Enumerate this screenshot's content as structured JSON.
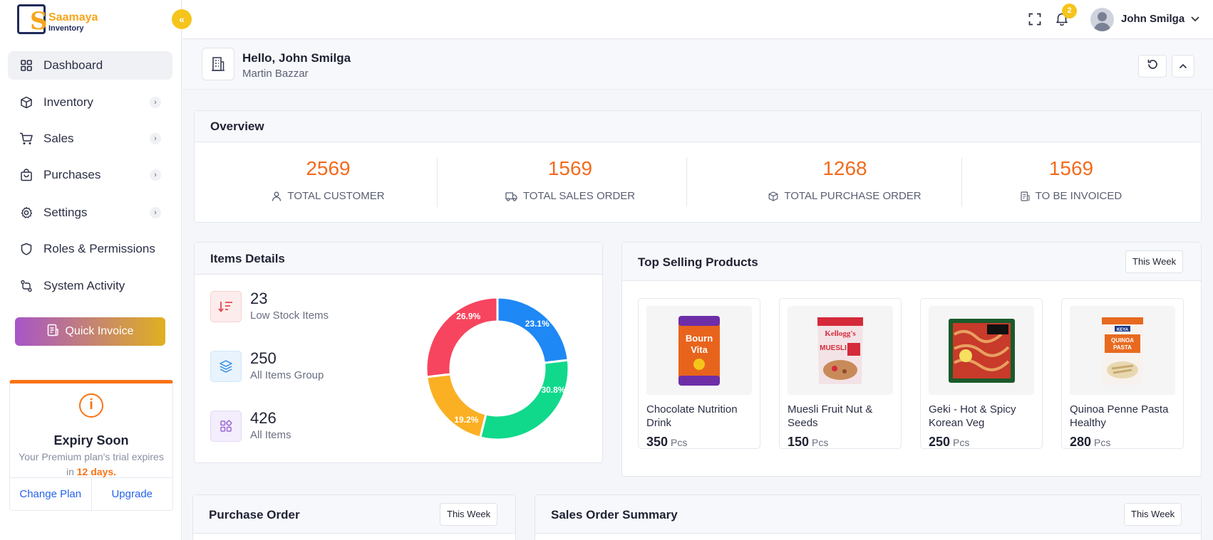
{
  "app": {
    "logo_line1": "Saamaya",
    "logo_line2": "Inventory"
  },
  "sidebar": {
    "items": [
      {
        "label": "Dashboard",
        "icon": "grid-icon",
        "active": true
      },
      {
        "label": "Inventory",
        "icon": "box-icon",
        "has_children": true
      },
      {
        "label": "Sales",
        "icon": "cart-icon",
        "has_children": true
      },
      {
        "label": "Purchases",
        "icon": "bag-icon",
        "has_children": true
      },
      {
        "label": "Settings",
        "icon": "gear-icon",
        "has_children": true
      },
      {
        "label": "Roles & Permissions",
        "icon": "shield-icon"
      },
      {
        "label": "System Activity",
        "icon": "activity-icon"
      }
    ],
    "quick_invoice_label": "Quick Invoice",
    "expiry": {
      "title": "Expiry Soon",
      "message_prefix": "Your Premium plan's trial expires in",
      "days": "12 days.",
      "change_plan": "Change Plan",
      "upgrade": "Upgrade"
    }
  },
  "topbar": {
    "notification_count": "2",
    "user_name": "John Smilga"
  },
  "greeting": {
    "title": "Hello, John Smilga",
    "subtitle": "Martin Bazzar"
  },
  "overview": {
    "title": "Overview",
    "stats": [
      {
        "value": "2569",
        "label": "TOTAL CUSTOMER",
        "icon": "user-icon"
      },
      {
        "value": "1569",
        "label": "TOTAL SALES ORDER",
        "icon": "truck-icon"
      },
      {
        "value": "1268",
        "label": "TOTAL PURCHASE ORDER",
        "icon": "package-icon"
      },
      {
        "value": "1569",
        "label": "TO BE INVOICED",
        "icon": "invoice-icon"
      }
    ]
  },
  "items_details": {
    "title": "Items Details",
    "rows": [
      {
        "value": "23",
        "label": "Low Stock Items",
        "icon": "sort-down-icon"
      },
      {
        "value": "250",
        "label": "All Items Group",
        "icon": "layers-icon"
      },
      {
        "value": "426",
        "label": "All Items",
        "icon": "apps-icon"
      }
    ]
  },
  "chart_data": {
    "type": "pie",
    "categories": [
      "",
      "",
      "",
      ""
    ],
    "values": [
      23.1,
      30.8,
      19.2,
      26.9
    ],
    "labels": [
      "23.1%",
      "30.8%",
      "19.2%",
      "26.9%"
    ],
    "colors": [
      "#1e88f5",
      "#10d98c",
      "#fbb024",
      "#f7455f"
    ],
    "title": ""
  },
  "top_selling": {
    "title": "Top Selling Products",
    "period": "This Week",
    "products": [
      {
        "name": "Chocolate Nutrition Drink",
        "qty": "350",
        "unit": "Pcs",
        "brand": "Bourn Vita",
        "color": "#e8641c"
      },
      {
        "name": "Muesli Fruit Nut & Seeds",
        "qty": "150",
        "unit": "Pcs",
        "brand": "Kellogg's",
        "color": "#d42a3a"
      },
      {
        "name": "Geki - Hot & Spicy Korean Veg",
        "qty": "250",
        "unit": "Pcs",
        "brand": "",
        "color": "#1a8a3a"
      },
      {
        "name": "Quinoa Penne Pasta Healthy",
        "qty": "280",
        "unit": "Pcs",
        "brand": "KEYA",
        "color": "#e86a20"
      }
    ]
  },
  "purchase_order": {
    "title": "Purchase Order",
    "period": "This Week"
  },
  "sales_order_summary": {
    "title": "Sales Order Summary",
    "period": "This Week"
  }
}
